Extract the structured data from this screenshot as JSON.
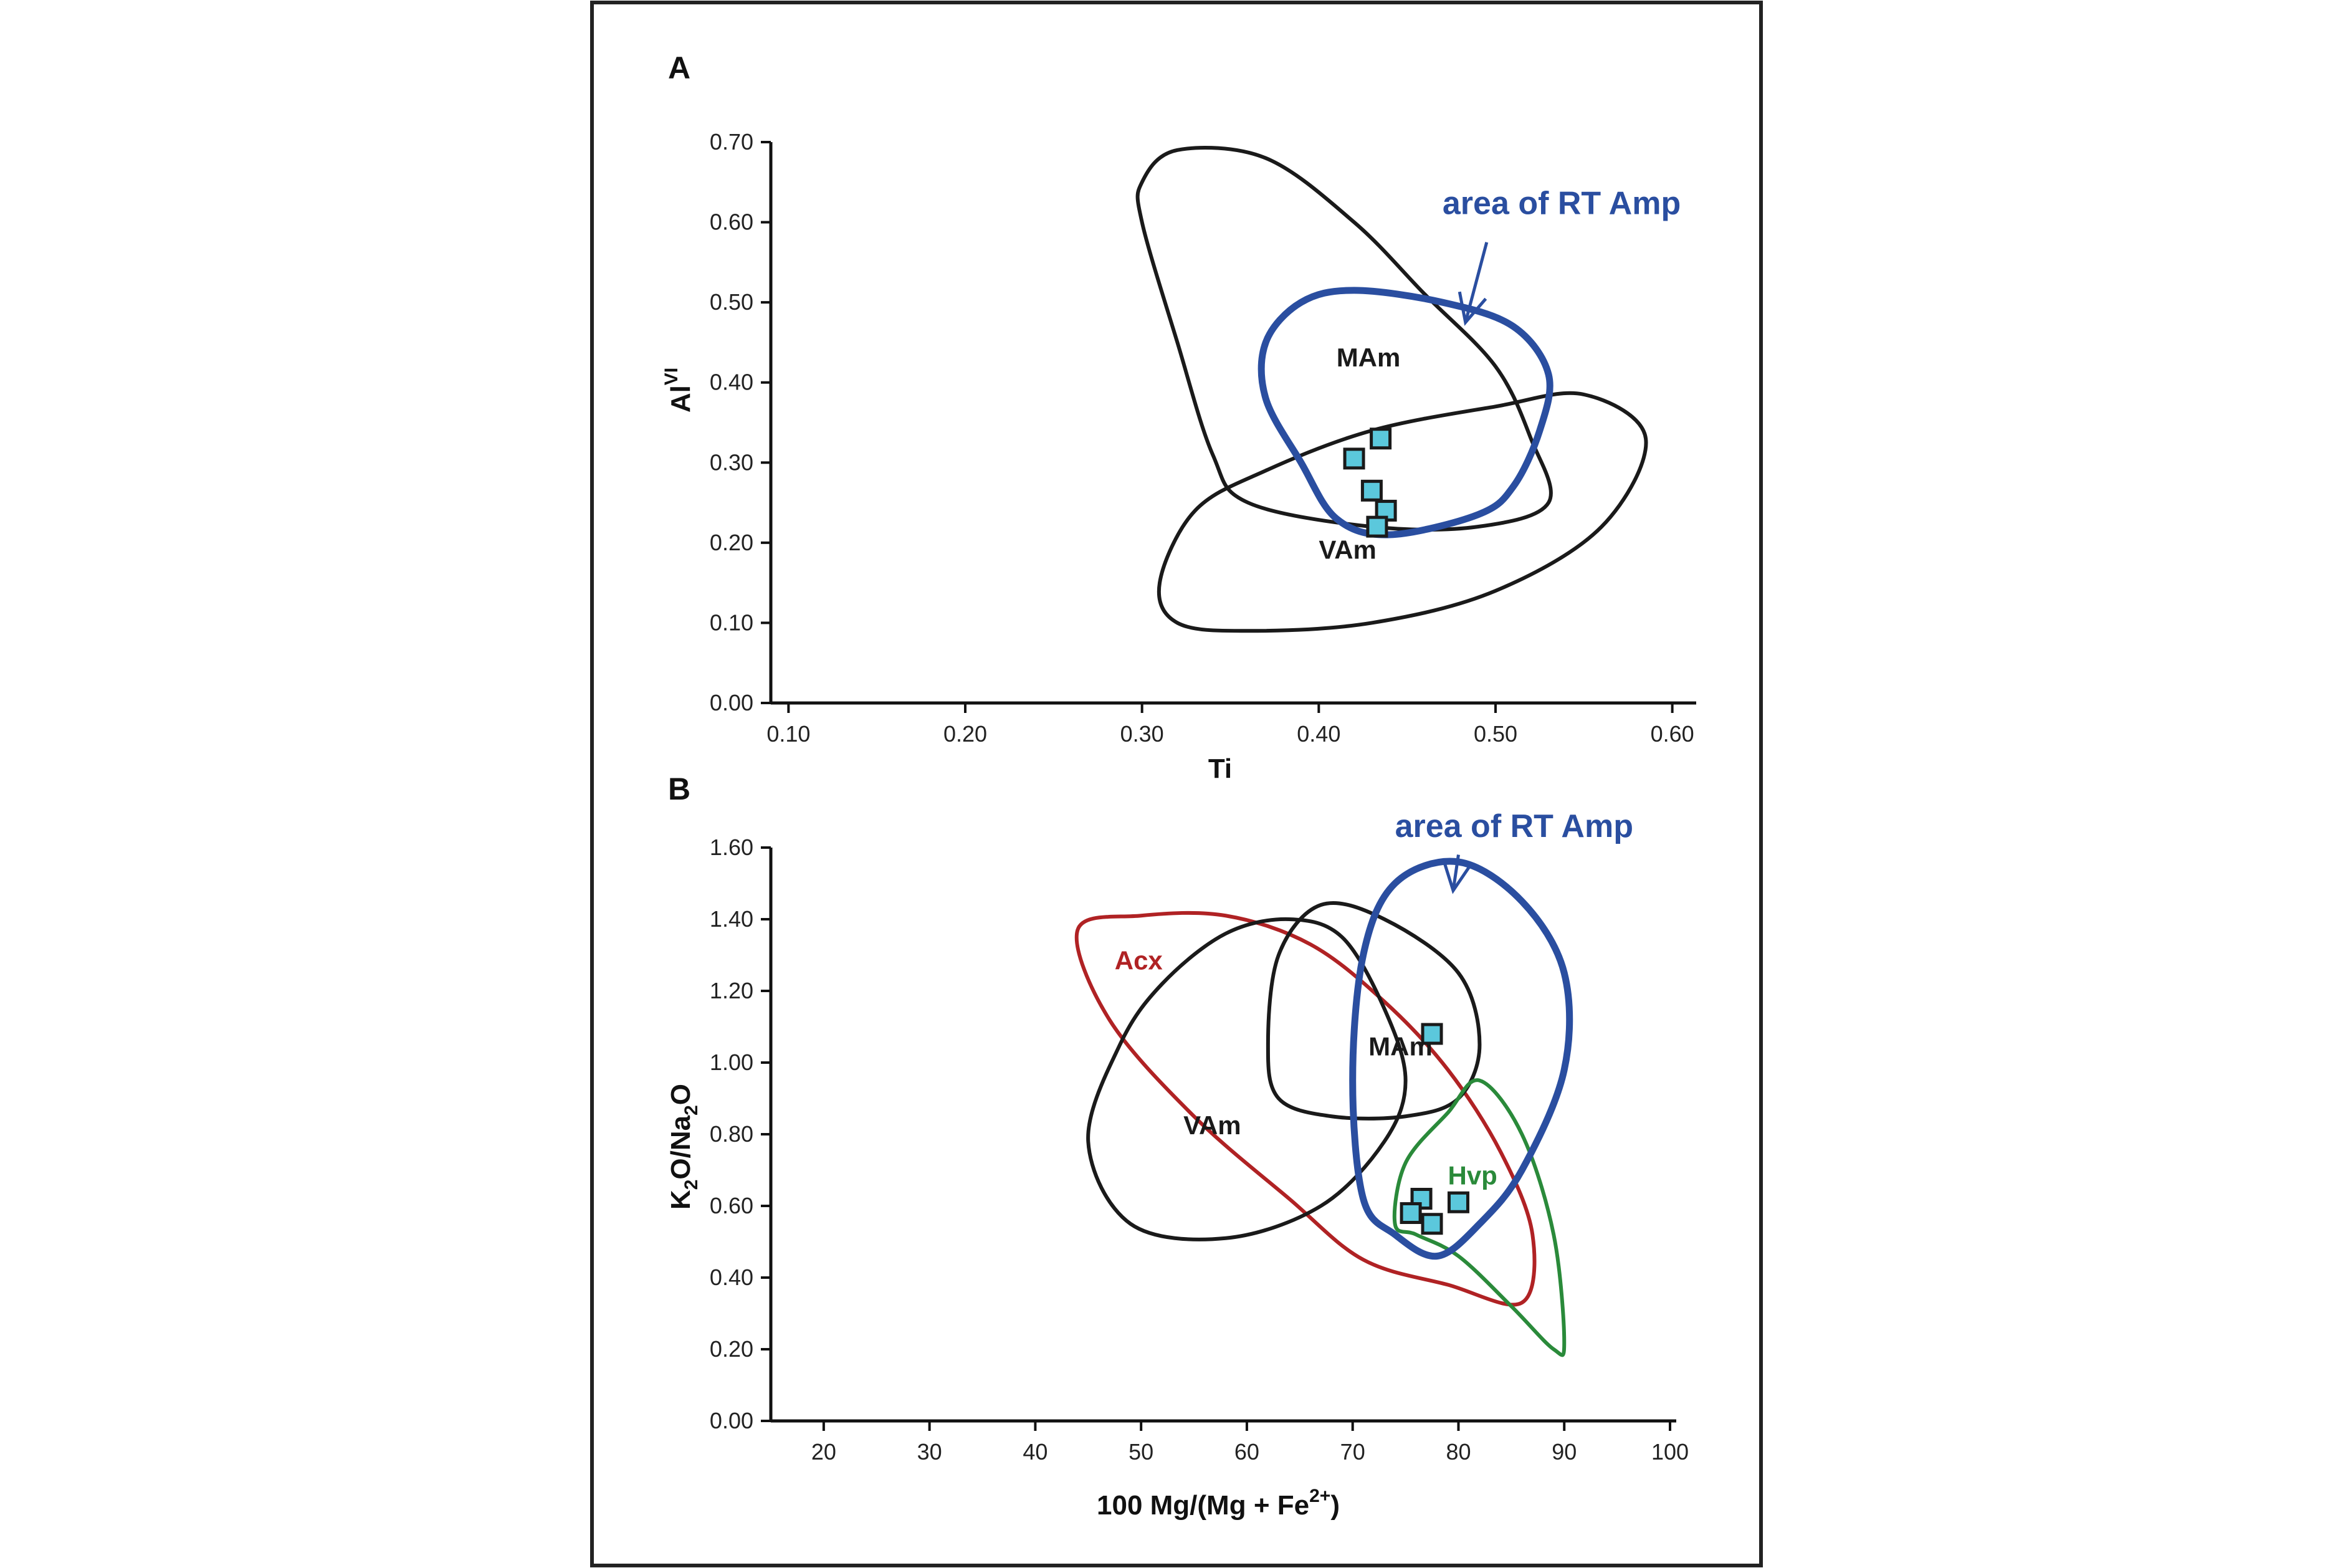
{
  "chart_data": [
    {
      "panel": "A",
      "type": "scatter",
      "xlabel": "Ti",
      "ylabel": {
        "base": "Al",
        "sup": "VI"
      },
      "xlim": [
        0.09,
        0.61
      ],
      "ylim": [
        0.0,
        0.7
      ],
      "xticks": [
        "0.10",
        "0.20",
        "0.30",
        "0.40",
        "0.50",
        "0.60"
      ],
      "xtick_values": [
        0.1,
        0.2,
        0.3,
        0.4,
        0.5,
        0.6
      ],
      "yticks": [
        "0.00",
        "0.10",
        "0.20",
        "0.30",
        "0.40",
        "0.50",
        "0.60",
        "0.70"
      ],
      "ytick_values": [
        0.0,
        0.1,
        0.2,
        0.3,
        0.4,
        0.5,
        0.6,
        0.7
      ],
      "points": [
        {
          "x": 0.42,
          "y": 0.305
        },
        {
          "x": 0.435,
          "y": 0.33
        },
        {
          "x": 0.43,
          "y": 0.265
        },
        {
          "x": 0.438,
          "y": 0.24
        },
        {
          "x": 0.433,
          "y": 0.22
        }
      ],
      "point_color": "#5bc8dc",
      "regions": [
        {
          "label": "MAm",
          "color": "#1a1a1a",
          "label_at": [
            0.41,
            0.42
          ],
          "outline": [
            [
              0.3,
              0.65
            ],
            [
              0.32,
              0.69
            ],
            [
              0.37,
              0.68
            ],
            [
              0.42,
              0.6
            ],
            [
              0.46,
              0.51
            ],
            [
              0.5,
              0.42
            ],
            [
              0.52,
              0.33
            ],
            [
              0.53,
              0.25
            ],
            [
              0.49,
              0.22
            ],
            [
              0.43,
              0.22
            ],
            [
              0.36,
              0.25
            ],
            [
              0.34,
              0.31
            ],
            [
              0.32,
              0.45
            ],
            [
              0.3,
              0.6
            ]
          ]
        },
        {
          "label": "VAm",
          "color": "#1a1a1a",
          "label_at": [
            0.4,
            0.18
          ],
          "outline": [
            [
              0.31,
              0.15
            ],
            [
              0.33,
              0.24
            ],
            [
              0.37,
              0.29
            ],
            [
              0.43,
              0.34
            ],
            [
              0.5,
              0.37
            ],
            [
              0.55,
              0.385
            ],
            [
              0.585,
              0.33
            ],
            [
              0.56,
              0.22
            ],
            [
              0.5,
              0.14
            ],
            [
              0.43,
              0.1
            ],
            [
              0.36,
              0.09
            ],
            [
              0.32,
              0.1
            ]
          ]
        },
        {
          "label": "",
          "color": "#2a4ea0",
          "label_at": null,
          "outline": [
            [
              0.37,
              0.45
            ],
            [
              0.39,
              0.5
            ],
            [
              0.42,
              0.515
            ],
            [
              0.47,
              0.5
            ],
            [
              0.51,
              0.47
            ],
            [
              0.53,
              0.41
            ],
            [
              0.525,
              0.34
            ],
            [
              0.51,
              0.27
            ],
            [
              0.49,
              0.235
            ],
            [
              0.44,
              0.21
            ],
            [
              0.41,
              0.23
            ],
            [
              0.39,
              0.3
            ],
            [
              0.37,
              0.38
            ]
          ]
        }
      ],
      "annotation": {
        "text": "area of RT Amp",
        "color": "#2a4ea0",
        "text_at": [
          0.47,
          0.61
        ],
        "arrow_from": [
          0.495,
          0.575
        ],
        "arrow_to": [
          0.483,
          0.475
        ]
      }
    },
    {
      "panel": "B",
      "type": "scatter",
      "xlabel": "100 Mg/(Mg + Fe 2+ )",
      "xlabel_parts": {
        "main": "100 Mg/(Mg + Fe",
        "sup": "2+",
        "close": ")"
      },
      "ylabel": {
        "parts": [
          "K",
          "2",
          "O/Na",
          "2",
          "O"
        ]
      },
      "xlim": [
        15,
        100
      ],
      "ylim": [
        0.0,
        1.6
      ],
      "xticks": [
        "20",
        "30",
        "40",
        "50",
        "60",
        "70",
        "80",
        "90",
        "100"
      ],
      "xtick_values": [
        20,
        30,
        40,
        50,
        60,
        70,
        80,
        90,
        100
      ],
      "yticks": [
        "0.00",
        "0.20",
        "0.40",
        "0.60",
        "0.80",
        "1.00",
        "1.20",
        "1.40",
        "1.60"
      ],
      "ytick_values": [
        0.0,
        0.2,
        0.4,
        0.6,
        0.8,
        1.0,
        1.2,
        1.4,
        1.6
      ],
      "points": [
        {
          "x": 77.5,
          "y": 1.08
        },
        {
          "x": 76.5,
          "y": 0.62
        },
        {
          "x": 80.0,
          "y": 0.61
        },
        {
          "x": 75.5,
          "y": 0.58
        },
        {
          "x": 77.5,
          "y": 0.55
        }
      ],
      "point_color": "#5bc8dc",
      "regions": [
        {
          "label": "Acx",
          "color": "#b02224",
          "label_at": [
            47.5,
            1.26
          ],
          "outline": [
            [
              44,
              1.37
            ],
            [
              50,
              1.41
            ],
            [
              58,
              1.41
            ],
            [
              66,
              1.33
            ],
            [
              73,
              1.17
            ],
            [
              79,
              0.98
            ],
            [
              84,
              0.75
            ],
            [
              87,
              0.52
            ],
            [
              86,
              0.33
            ],
            [
              79,
              0.38
            ],
            [
              71,
              0.45
            ],
            [
              64,
              0.62
            ],
            [
              55,
              0.85
            ],
            [
              47,
              1.12
            ]
          ]
        },
        {
          "label": "VAm",
          "color": "#1a1a1a",
          "label_at": [
            54,
            0.8
          ],
          "outline": [
            [
              45,
              0.78
            ],
            [
              48,
              1.05
            ],
            [
              52,
              1.22
            ],
            [
              58,
              1.36
            ],
            [
              64,
              1.4
            ],
            [
              69,
              1.35
            ],
            [
              73,
              1.15
            ],
            [
              75,
              0.95
            ],
            [
              73,
              0.78
            ],
            [
              67,
              0.6
            ],
            [
              58,
              0.51
            ],
            [
              49,
              0.55
            ]
          ]
        },
        {
          "label": "MAm",
          "color": "#1a1a1a",
          "label_at": [
            71.5,
            1.02
          ],
          "outline": [
            [
              62,
              1.05
            ],
            [
              63,
              1.3
            ],
            [
              67,
              1.44
            ],
            [
              73,
              1.4
            ],
            [
              80,
              1.25
            ],
            [
              82,
              1.05
            ],
            [
              80,
              0.9
            ],
            [
              75,
              0.85
            ],
            [
              68,
              0.85
            ],
            [
              63,
              0.9
            ]
          ]
        },
        {
          "label": "Hvp",
          "color": "#2a8a3a",
          "label_at": [
            79,
            0.66
          ],
          "outline": [
            [
              74,
              0.55
            ],
            [
              75,
              0.72
            ],
            [
              79,
              0.86
            ],
            [
              82,
              0.95
            ],
            [
              86,
              0.8
            ],
            [
              89,
              0.52
            ],
            [
              90,
              0.22
            ],
            [
              89,
              0.2
            ],
            [
              85,
              0.32
            ],
            [
              80,
              0.46
            ],
            [
              76,
              0.52
            ]
          ]
        },
        {
          "label": "",
          "color": "#2a4ea0",
          "label_at": null,
          "outline": [
            [
              71,
              1.3
            ],
            [
              74,
              1.5
            ],
            [
              80,
              1.56
            ],
            [
              86,
              1.45
            ],
            [
              90,
              1.25
            ],
            [
              90,
              0.98
            ],
            [
              86,
              0.7
            ],
            [
              82,
              0.55
            ],
            [
              78,
              0.46
            ],
            [
              74,
              0.52
            ],
            [
              71,
              0.62
            ],
            [
              70,
              0.95
            ]
          ]
        }
      ],
      "annotation": {
        "text": "area of RT Amp",
        "color": "#2a4ea0",
        "text_at": [
          74,
          1.63
        ],
        "arrow_from": [
          80,
          1.58
        ],
        "arrow_to": [
          79.5,
          1.48
        ]
      }
    }
  ]
}
